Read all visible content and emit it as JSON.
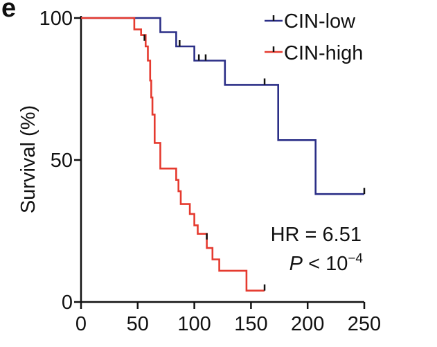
{
  "chart_data": {
    "type": "line",
    "subtype": "kaplan-meier",
    "panel_letter": "e",
    "title": "",
    "xlabel": "",
    "ylabel": "Survival (%)",
    "xlim": [
      0,
      250
    ],
    "ylim": [
      0,
      100
    ],
    "x_ticks": [
      "0",
      "50",
      "100",
      "150",
      "200",
      "250"
    ],
    "y_ticks": [
      "0",
      "50",
      "100"
    ],
    "legend_position": "top-right",
    "series": [
      {
        "name": "CIN-low",
        "color": "#2b2f87",
        "steps": [
          [
            0,
            100
          ],
          [
            70,
            100
          ],
          [
            70,
            95
          ],
          [
            84,
            95
          ],
          [
            84,
            90
          ],
          [
            100,
            90
          ],
          [
            100,
            85
          ],
          [
            127,
            85
          ],
          [
            127,
            76.5
          ],
          [
            174,
            76.5
          ],
          [
            174,
            57
          ],
          [
            207,
            57
          ],
          [
            207,
            38
          ],
          [
            250,
            38
          ]
        ],
        "censor_marks": [
          [
            87,
            90
          ],
          [
            104,
            85
          ],
          [
            110,
            85
          ],
          [
            162,
            76.5
          ],
          [
            250,
            38
          ]
        ]
      },
      {
        "name": "CIN-high",
        "color": "#e53a2f",
        "steps": [
          [
            0,
            100
          ],
          [
            47,
            100
          ],
          [
            47,
            96
          ],
          [
            53,
            96
          ],
          [
            53,
            94
          ],
          [
            57,
            94
          ],
          [
            57,
            90
          ],
          [
            59,
            90
          ],
          [
            59,
            85
          ],
          [
            61,
            85
          ],
          [
            61,
            78
          ],
          [
            62,
            78
          ],
          [
            62,
            72
          ],
          [
            63,
            72
          ],
          [
            63,
            66
          ],
          [
            65,
            66
          ],
          [
            65,
            56
          ],
          [
            70,
            56
          ],
          [
            70,
            47
          ],
          [
            84,
            47
          ],
          [
            84,
            43
          ],
          [
            86,
            43
          ],
          [
            86,
            39
          ],
          [
            88,
            39
          ],
          [
            88,
            34.5
          ],
          [
            96,
            34.5
          ],
          [
            96,
            31
          ],
          [
            100,
            31
          ],
          [
            100,
            27
          ],
          [
            103,
            27
          ],
          [
            103,
            24
          ],
          [
            111,
            24
          ],
          [
            111,
            19
          ],
          [
            116,
            19
          ],
          [
            116,
            15
          ],
          [
            122,
            15
          ],
          [
            122,
            11
          ],
          [
            146,
            11
          ],
          [
            146,
            4
          ],
          [
            162,
            4
          ]
        ],
        "censor_marks": [
          [
            56,
            92
          ],
          [
            111,
            22
          ],
          [
            162,
            4
          ]
        ]
      }
    ],
    "annotations": {
      "hr": "HR = 6.51",
      "p_prefix": "P",
      "p_relation": " < 10",
      "p_exponent": "−4"
    }
  }
}
